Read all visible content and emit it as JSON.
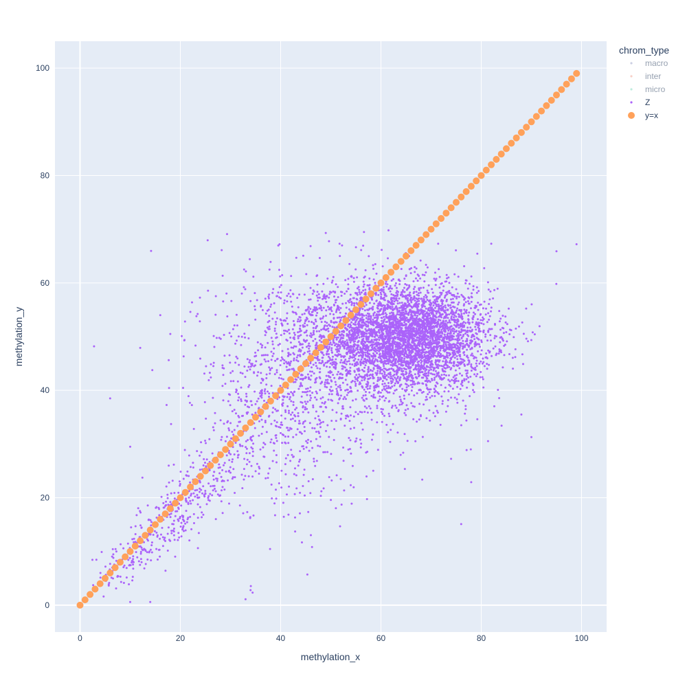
{
  "chart_data": {
    "type": "scatter",
    "title": "",
    "xlabel": "methylation_x",
    "ylabel": "methylation_y",
    "xlim": [
      -5,
      105
    ],
    "ylim": [
      -5,
      105
    ],
    "x_ticks": [
      0,
      20,
      40,
      60,
      80,
      100
    ],
    "y_ticks": [
      0,
      20,
      40,
      60,
      80,
      100
    ],
    "grid": true,
    "legend": {
      "title": "chrom_type",
      "position": "right",
      "entries": [
        {
          "name": "macro",
          "color": "#9aa0c8",
          "hidden": true
        },
        {
          "name": "inter",
          "color": "#f0a090",
          "hidden": true
        },
        {
          "name": "micro",
          "color": "#7fd9bd",
          "hidden": true
        },
        {
          "name": "Z",
          "color": "#ab63fa",
          "hidden": false
        },
        {
          "name": "y=x",
          "color": "#ffa15a",
          "hidden": false
        }
      ]
    },
    "series": [
      {
        "name": "Z",
        "color": "#ab63fa",
        "marker_size": 3,
        "approximate_point_count": 6000,
        "clusters": [
          {
            "center": [
              66,
              50
            ],
            "spread": [
              8,
              4.5
            ],
            "weight": 0.55
          },
          {
            "center": [
              58,
              48
            ],
            "spread": [
              10,
              7
            ],
            "weight": 0.25
          },
          {
            "center": [
              40,
              40
            ],
            "spread": [
              8,
              12
            ],
            "weight": 0.12
          },
          {
            "center": [
              20,
              15
            ],
            "spread": [
              9,
              8
            ],
            "weight": 0.08
          }
        ],
        "points": [
          {
            "x": 2.8,
            "y": 48.2
          },
          {
            "x": 6,
            "y": 38.5
          },
          {
            "x": 16,
            "y": 54
          },
          {
            "x": 18,
            "y": 50.5
          },
          {
            "x": 22,
            "y": 54.6
          },
          {
            "x": 49,
            "y": 69.3
          },
          {
            "x": 61.5,
            "y": 69.8
          },
          {
            "x": 82,
            "y": 67.3
          },
          {
            "x": 99,
            "y": 67.2
          },
          {
            "x": 95,
            "y": 65.9
          },
          {
            "x": 38,
            "y": 63.9
          },
          {
            "x": 33,
            "y": 1.1
          },
          {
            "x": 34,
            "y": 2.8
          },
          {
            "x": 76,
            "y": 15.1
          },
          {
            "x": 78,
            "y": 22.9
          },
          {
            "x": 88,
            "y": 35.5
          },
          {
            "x": 90,
            "y": 31.3
          },
          {
            "x": 10,
            "y": 29.5
          },
          {
            "x": 12,
            "y": 47.9
          },
          {
            "x": 10,
            "y": 0.6
          },
          {
            "x": 14,
            "y": 0.6
          }
        ]
      },
      {
        "name": "y=x",
        "color": "#ffa15a",
        "marker_size": 10,
        "x_range": [
          0,
          99
        ],
        "step": 1,
        "rule": "y equals x"
      }
    ]
  }
}
